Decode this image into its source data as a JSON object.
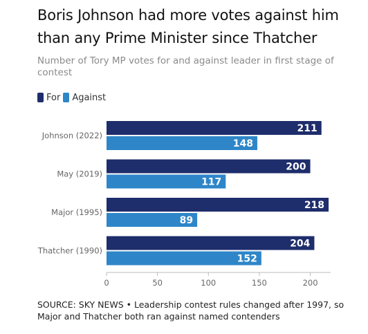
{
  "title": "Boris Johnson had more votes against him than any Prime Minister since Thatcher",
  "subtitle": "Number of Tory MP votes for and against leader in first stage of contest",
  "source": "SOURCE: SKY NEWS • Leadership contest rules changed after 1997, so Major and Thatcher both ran against named contenders",
  "colors": {
    "for": "#1e2d6b",
    "against": "#2e86c8",
    "axis": "#bbbbbb",
    "label": "#666666"
  },
  "chart_data": {
    "type": "bar",
    "orientation": "horizontal",
    "title": "Boris Johnson had more votes against him than any Prime Minister since Thatcher",
    "subtitle": "Number of Tory MP votes for and against leader in first stage of contest",
    "categories": [
      "Johnson (2022)",
      "May (2019)",
      "Major (1995)",
      "Thatcher (1990)"
    ],
    "series": [
      {
        "name": "For",
        "values": [
          211,
          200,
          218,
          204
        ]
      },
      {
        "name": "Against",
        "values": [
          148,
          117,
          89,
          152
        ]
      }
    ],
    "xlim": [
      0,
      220
    ],
    "xticks": [
      0,
      50,
      100,
      150,
      200
    ],
    "grid": false,
    "legend": "top-left",
    "data_labels": true
  }
}
